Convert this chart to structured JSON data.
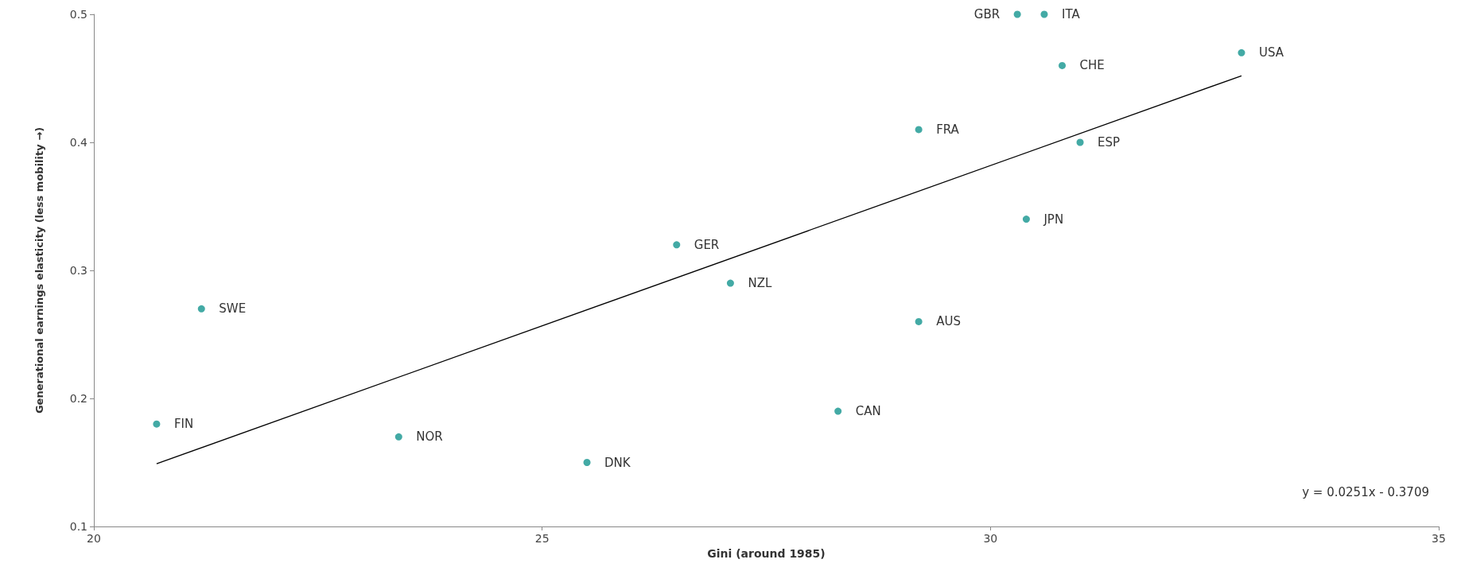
{
  "chart_data": {
    "type": "scatter",
    "xlabel": "Gini (around 1985)",
    "ylabel": "Generational earnings elasticity (less mobility →)",
    "xlim": [
      20,
      35
    ],
    "xticks": [
      20,
      25,
      30,
      35
    ],
    "ylim": [
      0.1,
      0.5
    ],
    "yticks": [
      0.1,
      0.2,
      0.3,
      0.4,
      0.5
    ],
    "grid": false,
    "series": [
      {
        "marker": "circle",
        "color": "#14958f",
        "x": [
          30.3,
          30.6,
          30.8,
          32.8,
          29.2,
          31.0,
          30.4,
          26.5,
          27.1,
          21.2,
          29.2,
          28.3,
          20.7,
          23.4,
          25.5
        ],
        "values": [
          0.5,
          0.5,
          0.46,
          0.47,
          0.41,
          0.4,
          0.34,
          0.32,
          0.29,
          0.27,
          0.26,
          0.19,
          0.18,
          0.17,
          0.15
        ]
      },
      {
        "type": "line",
        "marker": "none",
        "color": "#000000",
        "x": [
          20.7,
          32.8
        ],
        "values": [
          0.149,
          0.452
        ]
      }
    ],
    "annotations": [
      {
        "text": "GBR",
        "x": 30.3,
        "y": 0.5
      },
      {
        "text": "ITA",
        "x": 30.6,
        "y": 0.5
      },
      {
        "text": "CHE",
        "x": 30.8,
        "y": 0.46
      },
      {
        "text": "USA",
        "x": 32.8,
        "y": 0.47
      },
      {
        "text": "FRA",
        "x": 29.2,
        "y": 0.41
      },
      {
        "text": "ESP",
        "x": 31.0,
        "y": 0.4
      },
      {
        "text": "JPN",
        "x": 30.4,
        "y": 0.34
      },
      {
        "text": "GER",
        "x": 26.5,
        "y": 0.32
      },
      {
        "text": "NZL",
        "x": 27.1,
        "y": 0.29
      },
      {
        "text": "SWE",
        "x": 21.2,
        "y": 0.27
      },
      {
        "text": "AUS",
        "x": 29.2,
        "y": 0.26
      },
      {
        "text": "CAN",
        "x": 28.3,
        "y": 0.19
      },
      {
        "text": "FIN",
        "x": 20.7,
        "y": 0.18
      },
      {
        "text": "NOR",
        "x": 23.4,
        "y": 0.17
      },
      {
        "text": "DNK",
        "x": 25.5,
        "y": 0.15
      },
      "y = 0.0251x - 0.3709"
    ]
  }
}
